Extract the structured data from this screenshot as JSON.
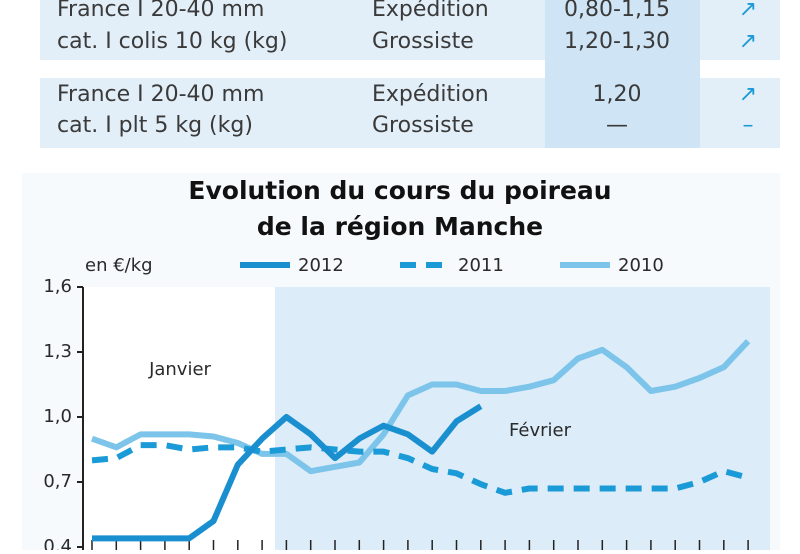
{
  "table": {
    "rows": [
      {
        "product": [
          "France I 20-40 mm",
          "cat. I colis 10 kg (kg)"
        ],
        "stage": [
          "Expédition",
          "Grossiste"
        ],
        "price": [
          "0,80-1,15",
          "1,20-1,30"
        ],
        "trend": [
          "↗",
          "↗"
        ]
      },
      {
        "product": [
          "France I 20-40 mm",
          "cat. I plt 5 kg (kg)"
        ],
        "stage": [
          "Expédition",
          "Grossiste"
        ],
        "price": [
          "1,20",
          "—"
        ],
        "trend": [
          "↗",
          "–"
        ]
      }
    ]
  },
  "chart_data": {
    "type": "line",
    "title": [
      "Evolution du cours du poireau",
      "de la région Manche"
    ],
    "unit_label": "en €/kg",
    "annotations": [
      "Janvier",
      "Février"
    ],
    "categories": [
      null,
      null,
      null,
      null,
      null,
      null,
      null,
      null,
      null,
      null,
      null,
      null,
      null,
      null,
      null,
      null,
      null,
      null,
      null,
      null,
      null,
      null,
      null,
      null,
      null,
      null,
      null,
      null
    ],
    "ylim": [
      0.4,
      1.6
    ],
    "yticks": [
      {
        "value": 0.4,
        "label": "0,4"
      },
      {
        "value": 0.7,
        "label": "0,7"
      },
      {
        "value": 1.0,
        "label": "1,0"
      },
      {
        "value": 1.3,
        "label": "1,3"
      },
      {
        "value": 1.6,
        "label": "1,6"
      }
    ],
    "series": [
      {
        "name": "2012",
        "color": "#1a8fd0",
        "dashed": false,
        "values": [
          0.44,
          0.44,
          0.44,
          0.44,
          0.44,
          0.52,
          0.78,
          0.9,
          1.0,
          0.92,
          0.81,
          0.9,
          0.96,
          0.92,
          0.84,
          0.98,
          1.05,
          null,
          null,
          null,
          null,
          null,
          null,
          null,
          null,
          null,
          null,
          null
        ]
      },
      {
        "name": "2011",
        "color": "#1a9ad6",
        "dashed": true,
        "values": [
          0.8,
          0.81,
          0.87,
          0.87,
          0.85,
          0.86,
          0.86,
          0.84,
          0.85,
          0.86,
          0.85,
          0.84,
          0.84,
          0.81,
          0.76,
          0.74,
          0.69,
          0.65,
          0.67,
          0.67,
          0.67,
          0.67,
          0.67,
          0.67,
          0.67,
          0.7,
          0.75,
          0.72
        ]
      },
      {
        "name": "2010",
        "color": "#7cc4ea",
        "dashed": false,
        "values": [
          0.9,
          0.86,
          0.92,
          0.92,
          0.92,
          0.91,
          0.88,
          0.83,
          0.83,
          0.75,
          0.77,
          0.79,
          0.92,
          1.1,
          1.15,
          1.15,
          1.12,
          1.12,
          1.14,
          1.17,
          1.27,
          1.31,
          1.23,
          1.12,
          1.14,
          1.18,
          1.23,
          1.35
        ]
      }
    ]
  }
}
